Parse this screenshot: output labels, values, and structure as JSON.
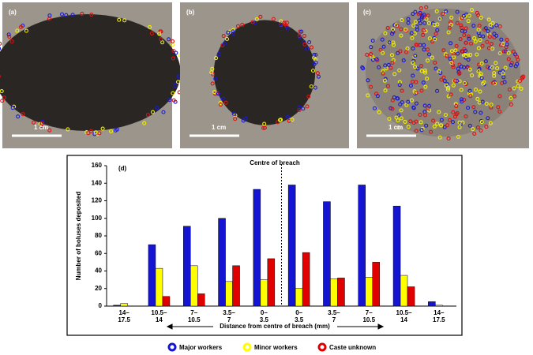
{
  "photos": [
    {
      "label": "(a)",
      "scale": "1 cm"
    },
    {
      "label": "(b)",
      "scale": "1 cm"
    },
    {
      "label": "(c)",
      "scale": "1 cm"
    }
  ],
  "chart_data": {
    "type": "bar",
    "panel": "(d)",
    "annotation": "Centre of breach",
    "ylabel": "Number of boluses deposited",
    "xlabel": "Distance from centre of breach (mm)",
    "categories": [
      "14–17.5",
      "10.5–14",
      "7–10.5",
      "3.5–7",
      "0–3.5",
      "0–3.5",
      "3.5–7",
      "7–10.5",
      "10.5–14",
      "14–17.5"
    ],
    "series": [
      {
        "name": "Major workers",
        "color": "#1414d2",
        "values": [
          1,
          70,
          91,
          100,
          133,
          138,
          119,
          138,
          114,
          5
        ]
      },
      {
        "name": "Minor workers",
        "color": "#ffff00",
        "values": [
          3,
          43,
          46,
          28,
          30,
          20,
          31,
          33,
          35,
          1
        ]
      },
      {
        "name": "Caste unknown",
        "color": "#e00000",
        "values": [
          0,
          11,
          14,
          46,
          54,
          61,
          32,
          50,
          22,
          0
        ]
      }
    ],
    "ylim": [
      0,
      160
    ],
    "yticks": [
      0,
      20,
      40,
      60,
      80,
      100,
      120,
      140,
      160
    ],
    "legend": "bottom"
  }
}
